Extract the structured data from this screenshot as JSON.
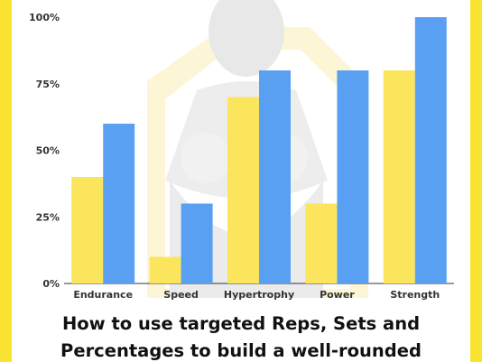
{
  "colors": {
    "background_frame": "#f9e230",
    "series_a": "#fbe55c",
    "series_b": "#5aa0f2",
    "axis": "#333333"
  },
  "chart_data": {
    "type": "bar",
    "categories": [
      "Endurance",
      "Speed",
      "Hypertrophy",
      "Power",
      "Strength"
    ],
    "series": [
      {
        "values": [
          40,
          10,
          70,
          30,
          80
        ],
        "color": "#fbe55c"
      },
      {
        "values": [
          60,
          30,
          80,
          80,
          100
        ],
        "color": "#5aa0f2"
      }
    ],
    "yticks": [
      "0%",
      "25%",
      "50%",
      "75%",
      "100%"
    ],
    "ylim": [
      0,
      100
    ],
    "grid": false,
    "legend": "none"
  },
  "caption": {
    "line1": "How to use targeted Reps, Sets and",
    "line2": "Percentages to build a well-rounded"
  }
}
